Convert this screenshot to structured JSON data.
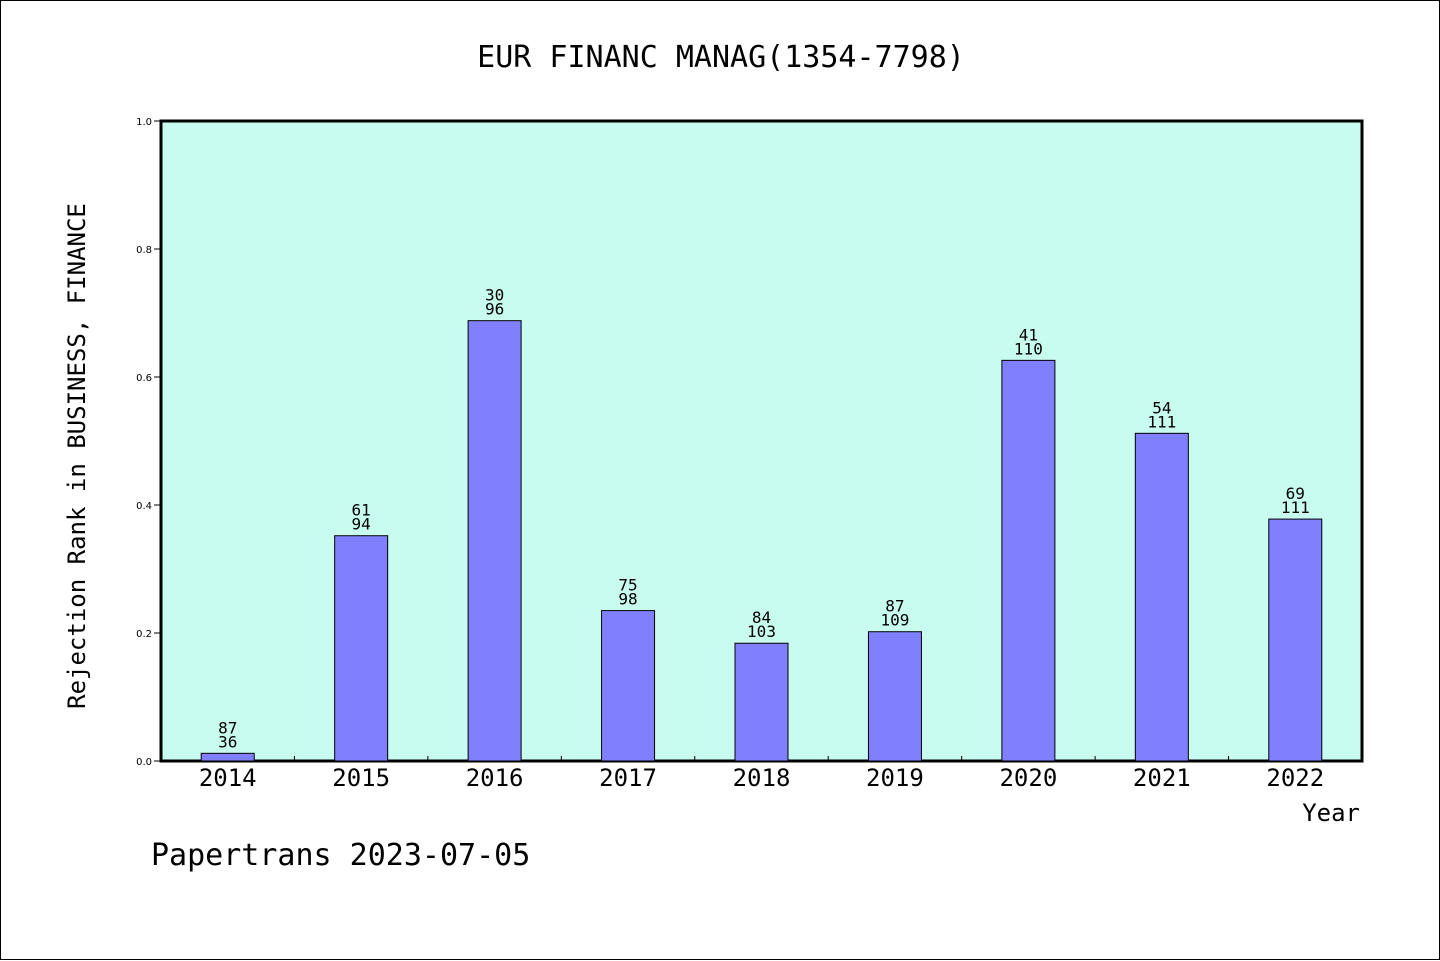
{
  "chart_data": {
    "type": "bar",
    "title": "EUR FINANC MANAG(1354-7798)",
    "xlabel": "Year",
    "ylabel": "Rejection Rank in BUSINESS, FINANCE",
    "ylim": [
      0,
      1.0
    ],
    "yticks": [
      "0.0",
      "0.2",
      "0.4",
      "0.6",
      "0.8",
      "1.0"
    ],
    "categories": [
      "2014",
      "2015",
      "2016",
      "2017",
      "2018",
      "2019",
      "2020",
      "2021",
      "2022"
    ],
    "values": [
      0.012,
      0.352,
      0.688,
      0.235,
      0.184,
      0.202,
      0.626,
      0.512,
      0.378
    ],
    "labels_top": [
      "87",
      "61",
      "30",
      "75",
      "84",
      "87",
      "41",
      "54",
      "69"
    ],
    "labels_bottom": [
      "36",
      "94",
      "96",
      "98",
      "103",
      "109",
      "110",
      "111",
      "111"
    ],
    "grid": false,
    "colors": {
      "plot_background": "#c8fcee",
      "bar": "#8080ff"
    }
  },
  "footer": "Papertrans 2023-07-05"
}
